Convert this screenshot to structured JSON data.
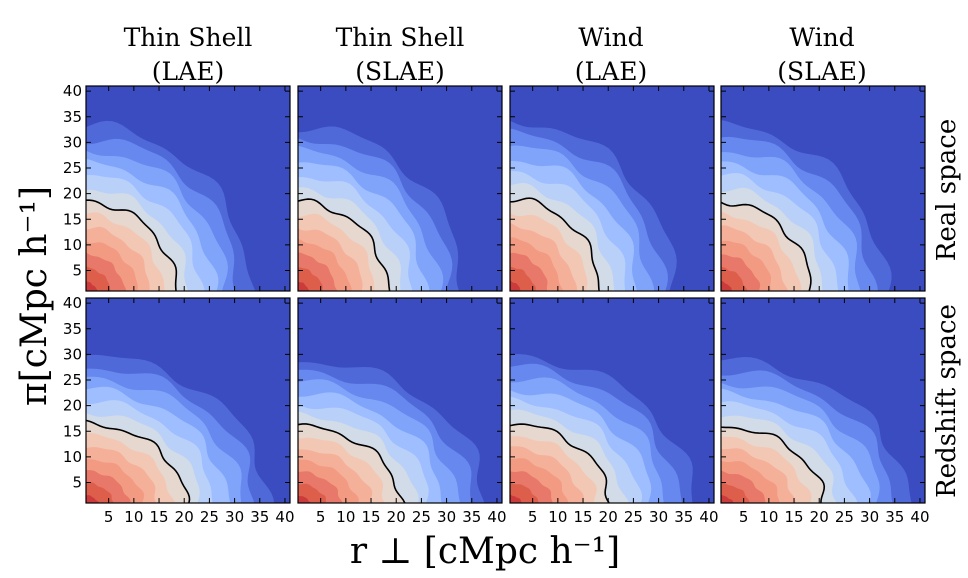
{
  "chart_data": {
    "type": "contour",
    "columns": [
      {
        "title_line1": "Thin Shell",
        "title_line2": "(LAE)"
      },
      {
        "title_line1": "Thin Shell",
        "title_line2": "(SLAE)"
      },
      {
        "title_line1": "Wind",
        "title_line2": "(LAE)"
      },
      {
        "title_line1": "Wind",
        "title_line2": "(SLAE)"
      }
    ],
    "rows": [
      {
        "label": "Real space"
      },
      {
        "label": "Redshift space"
      }
    ],
    "xlabel": "r ⊥ [cMpc h⁻¹]",
    "ylabel": "π[cMpc h⁻¹]",
    "xlim": [
      0.5,
      41
    ],
    "ylim": [
      1,
      41
    ],
    "xticks": [
      5,
      10,
      15,
      20,
      25,
      30,
      35,
      40
    ],
    "yticks": [
      5,
      10,
      15,
      20,
      25,
      30,
      35,
      40
    ],
    "colormap": [
      "#3b4cc0",
      "#4f69d9",
      "#6788ee",
      "#81a4fb",
      "#9ebeff",
      "#b9d0f9",
      "#d2dbe8",
      "#e6d7cf",
      "#f2c8b5",
      "#f5b09a",
      "#f29a82",
      "#e8786a",
      "#dd5f4b",
      "#cc3b3b"
    ],
    "black_contour_level": 7,
    "panels": [
      {
        "row": 0,
        "col": 0,
        "black_contour_r_at_pi0": 18.5,
        "black_contour_pi_at_r0": 18.5,
        "anisotropy": 1.0
      },
      {
        "row": 0,
        "col": 1,
        "black_contour_r_at_pi0": 18.5,
        "black_contour_pi_at_r0": 18.5,
        "anisotropy": 1.0
      },
      {
        "row": 0,
        "col": 2,
        "black_contour_r_at_pi0": 18.5,
        "black_contour_pi_at_r0": 19.0,
        "anisotropy": 1.0
      },
      {
        "row": 0,
        "col": 3,
        "black_contour_r_at_pi0": 18.5,
        "black_contour_pi_at_r0": 18.5,
        "anisotropy": 1.0
      },
      {
        "row": 1,
        "col": 0,
        "black_contour_r_at_pi0": 20.5,
        "black_contour_pi_at_r0": 16.5,
        "anisotropy": 0.8
      },
      {
        "row": 1,
        "col": 1,
        "black_contour_r_at_pi0": 21.0,
        "black_contour_pi_at_r0": 16.0,
        "anisotropy": 0.76
      },
      {
        "row": 1,
        "col": 2,
        "black_contour_r_at_pi0": 20.5,
        "black_contour_pi_at_r0": 16.5,
        "anisotropy": 0.8
      },
      {
        "row": 1,
        "col": 3,
        "black_contour_r_at_pi0": 21.0,
        "black_contour_pi_at_r0": 16.0,
        "anisotropy": 0.76
      }
    ]
  }
}
